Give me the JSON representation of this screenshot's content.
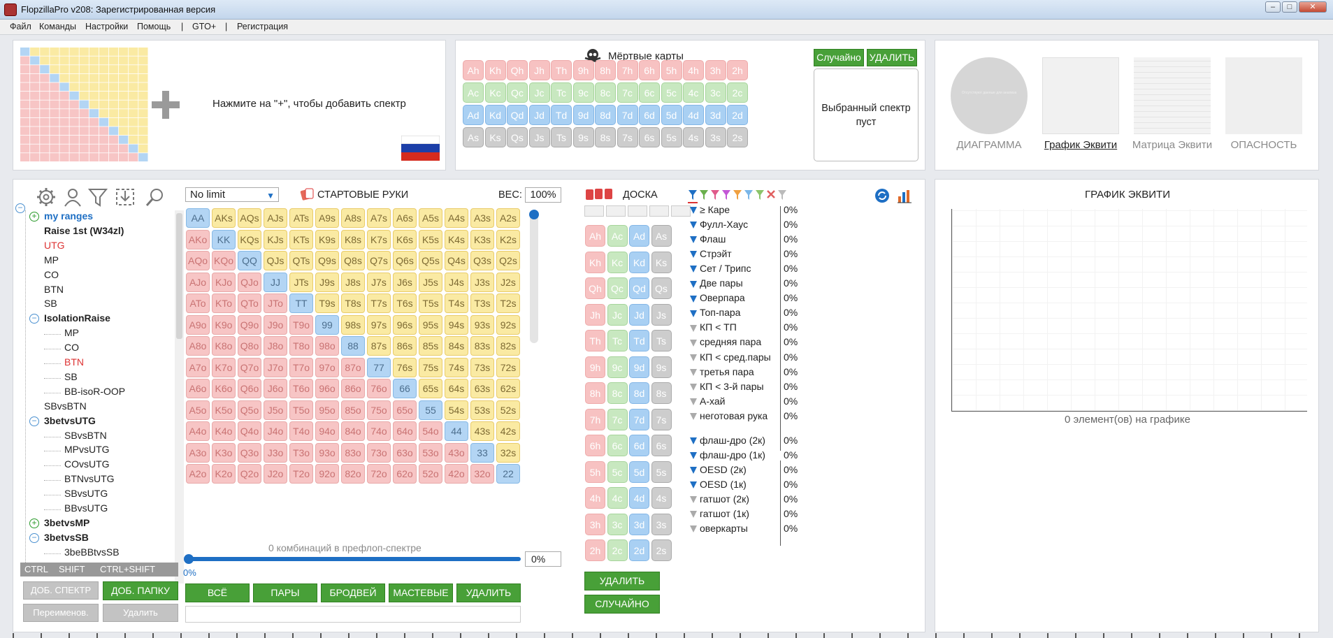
{
  "window": {
    "title": "FlopzillaPro v208: Зарегистрированная версия"
  },
  "menu": [
    "Файл",
    "Команды",
    "Настройки",
    "Помощь",
    "|",
    "GTO+",
    "|",
    "Регистрация"
  ],
  "add_range": {
    "hint": "Нажмите на \"+\", чтобы добавить спектр"
  },
  "dead_cards": {
    "title": "Мёртвые карты",
    "random_label": "Случайно",
    "delete_label": "УДАЛИТЬ",
    "selected_text": "Выбранный спектр пуст",
    "rows": [
      [
        "Ah",
        "Kh",
        "Qh",
        "Jh",
        "Th",
        "9h",
        "8h",
        "7h",
        "6h",
        "5h",
        "4h",
        "3h",
        "2h"
      ],
      [
        "Ac",
        "Kc",
        "Qc",
        "Jc",
        "Tc",
        "9c",
        "8c",
        "7c",
        "6c",
        "5c",
        "4c",
        "3c",
        "2c"
      ],
      [
        "Ad",
        "Kd",
        "Qd",
        "Jd",
        "Td",
        "9d",
        "8d",
        "7d",
        "6d",
        "5d",
        "4d",
        "3d",
        "2d"
      ],
      [
        "As",
        "Ks",
        "Qs",
        "Js",
        "Ts",
        "9s",
        "8s",
        "7s",
        "6s",
        "5s",
        "4s",
        "3s",
        "2s"
      ]
    ]
  },
  "views": {
    "items": [
      "ДИАГРАММА",
      "График Эквити",
      "Матрица Эквити",
      "ОПАСНОСТЬ"
    ],
    "diagram_caption": "Отсутствуют данные для анализа"
  },
  "tree": {
    "items": [
      {
        "label": "my ranges",
        "level": 1,
        "style": "blue",
        "toggle": "+"
      },
      {
        "label": "Raise 1st (W34zl)",
        "level": 1,
        "style": "bold"
      },
      {
        "label": "UTG",
        "level": 1,
        "style": "red"
      },
      {
        "label": "MP",
        "level": 1,
        "style": "plain"
      },
      {
        "label": "CO",
        "level": 1,
        "style": "plain"
      },
      {
        "label": "BTN",
        "level": 1,
        "style": "plain"
      },
      {
        "label": "SB",
        "level": 1,
        "style": "plain"
      },
      {
        "label": "IsolationRaise",
        "level": 1,
        "style": "bold",
        "toggle": "−"
      },
      {
        "label": "MP",
        "level": 2,
        "style": "plain"
      },
      {
        "label": "CO",
        "level": 2,
        "style": "plain"
      },
      {
        "label": "BTN",
        "level": 2,
        "style": "red"
      },
      {
        "label": "SB",
        "level": 2,
        "style": "plain"
      },
      {
        "label": "BB-isoR-OOP",
        "level": 2,
        "style": "plain"
      },
      {
        "label": "SBvsBTN",
        "level": 1,
        "style": "plain"
      },
      {
        "label": "3betvsUTG",
        "level": 1,
        "style": "bold",
        "toggle": "−"
      },
      {
        "label": "SBvsBTN",
        "level": 2,
        "style": "plain"
      },
      {
        "label": "MPvsUTG",
        "level": 2,
        "style": "plain"
      },
      {
        "label": "COvsUTG",
        "level": 2,
        "style": "plain"
      },
      {
        "label": "BTNvsUTG",
        "level": 2,
        "style": "plain"
      },
      {
        "label": "SBvsUTG",
        "level": 2,
        "style": "plain"
      },
      {
        "label": "BBvsUTG",
        "level": 2,
        "style": "plain"
      },
      {
        "label": "3betvsMP",
        "level": 1,
        "style": "bold",
        "toggle": "+"
      },
      {
        "label": "3betvsSB",
        "level": 1,
        "style": "bold",
        "toggle": "−"
      },
      {
        "label": "3beBBtvsSB",
        "level": 2,
        "style": "plain"
      }
    ],
    "modifiers": [
      "CTRL",
      "SHIFT",
      "CTRL+SHIFT"
    ],
    "btn_add_range": "ДОБ. СПЕКТР",
    "btn_add_folder": "ДОБ. ПАПКУ",
    "btn_rename": "Переименов.",
    "btn_delete": "Удалить"
  },
  "hands": {
    "limit": "No limit",
    "title": "СТАРТОВЫЕ РУКИ",
    "weight_label": "ВЕС:",
    "weight": "100%",
    "combos_text": "0 комбинаций в префлоп-спектре",
    "slider_pct": "0%",
    "slider_value": "0%",
    "buttons": [
      "ВСЁ",
      "ПАРЫ",
      "БРОДВЕЙ",
      "МАСТЕВЫЕ",
      "УДАЛИТЬ"
    ],
    "ranks": [
      "A",
      "K",
      "Q",
      "J",
      "T",
      "9",
      "8",
      "7",
      "6",
      "5",
      "4",
      "3",
      "2"
    ]
  },
  "board": {
    "title": "ДОСКА",
    "delete_label": "УДАЛИТЬ",
    "random_label": "СЛУЧАЙНО",
    "rows": [
      [
        "Ah",
        "Ac",
        "Ad",
        "As"
      ],
      [
        "Kh",
        "Kc",
        "Kd",
        "Ks"
      ],
      [
        "Qh",
        "Qc",
        "Qd",
        "Qs"
      ],
      [
        "Jh",
        "Jc",
        "Jd",
        "Js"
      ],
      [
        "Th",
        "Tc",
        "Td",
        "Ts"
      ],
      [
        "9h",
        "9c",
        "9d",
        "9s"
      ],
      [
        "8h",
        "8c",
        "8d",
        "8s"
      ],
      [
        "7h",
        "7c",
        "7d",
        "7s"
      ],
      [
        "6h",
        "6c",
        "6d",
        "6s"
      ],
      [
        "5h",
        "5c",
        "5d",
        "5s"
      ],
      [
        "4h",
        "4c",
        "4d",
        "4s"
      ],
      [
        "3h",
        "3c",
        "3d",
        "3s"
      ],
      [
        "2h",
        "2c",
        "2d",
        "2s"
      ]
    ]
  },
  "hits": {
    "groups": [
      [
        {
          "label": "≥ Каре",
          "pct": "0%",
          "active": true
        },
        {
          "label": "Фулл-Хаус",
          "pct": "0%",
          "active": true
        },
        {
          "label": "Флаш",
          "pct": "0%",
          "active": true
        },
        {
          "label": "Стрэйт",
          "pct": "0%",
          "active": true
        },
        {
          "label": "Сет / Трипс",
          "pct": "0%",
          "active": true
        },
        {
          "label": "Две пары",
          "pct": "0%",
          "active": true
        },
        {
          "label": "Оверпара",
          "pct": "0%",
          "active": true
        },
        {
          "label": "Топ-пара",
          "pct": "0%",
          "active": true
        },
        {
          "label": "КП < ТП",
          "pct": "0%",
          "active": false
        },
        {
          "label": "средняя пара",
          "pct": "0%",
          "active": false
        },
        {
          "label": "КП < сред.пары",
          "pct": "0%",
          "active": false
        },
        {
          "label": "третья пара",
          "pct": "0%",
          "active": false
        },
        {
          "label": "КП < 3-й пары",
          "pct": "0%",
          "active": false
        },
        {
          "label": "А-хай",
          "pct": "0%",
          "active": false
        },
        {
          "label": "неготовая рука",
          "pct": "0%",
          "active": false
        }
      ],
      [
        {
          "label": "флаш-дро (2к)",
          "pct": "0%",
          "active": true
        },
        {
          "label": "флаш-дро (1к)",
          "pct": "0%",
          "active": true
        },
        {
          "label": "OESD (2к)",
          "pct": "0%",
          "active": true
        },
        {
          "label": "OESD (1к)",
          "pct": "0%",
          "active": true
        },
        {
          "label": "гатшот (2к)",
          "pct": "0%",
          "active": false
        },
        {
          "label": "гатшот (1к)",
          "pct": "0%",
          "active": false
        },
        {
          "label": "оверкарты",
          "pct": "0%",
          "active": false
        }
      ]
    ]
  },
  "equity": {
    "title": "ГРАФИК ЭКВИТИ",
    "caption": "0 элемент(ов) на графике"
  },
  "colors": {
    "hearts": "#f7c2c2",
    "clubs": "#c8e8c0",
    "diamonds": "#a9d0f3",
    "spades": "#cdcdcd",
    "green_btn": "#48a038",
    "pair": "#b3d5f4",
    "suited": "#faeaa3",
    "offsuit": "#f7c5c5"
  }
}
